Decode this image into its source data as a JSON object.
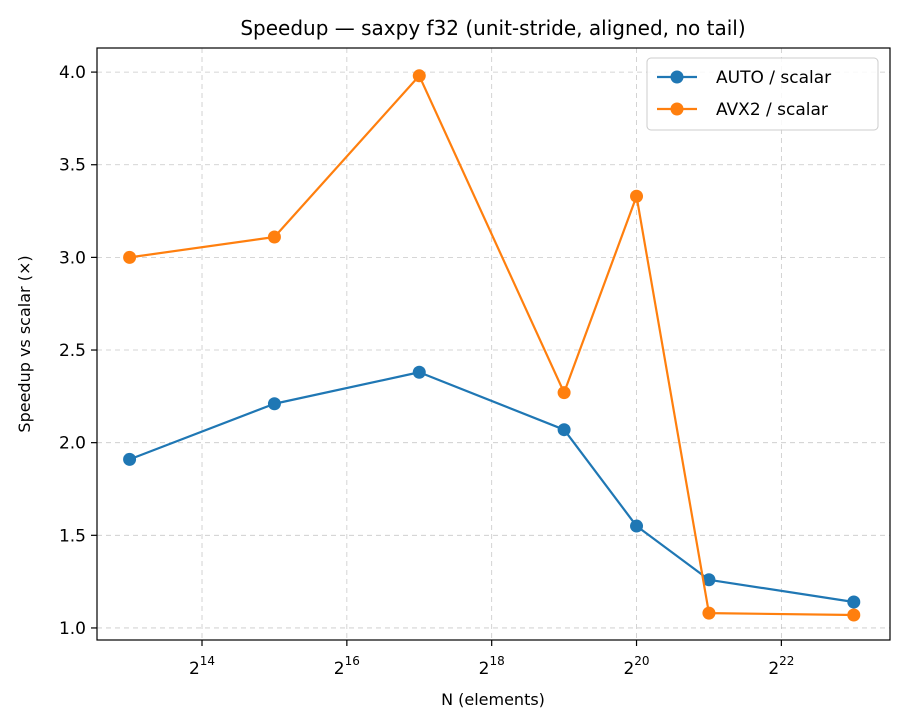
{
  "chart_data": {
    "type": "line",
    "title": "Speedup — saxpy f32 (unit-stride, aligned, no tail)",
    "xlabel": "N (elements)",
    "ylabel": "Speedup vs scalar (×)",
    "x_scale": "log2",
    "x": [
      8192,
      32768,
      131072,
      524288,
      1048576,
      2097152,
      8388608
    ],
    "xlim_exponent": [
      12.55,
      23.5
    ],
    "ylim": [
      0.935,
      4.13
    ],
    "x_ticks": [
      {
        "base": "2",
        "exp": "14",
        "value": 16384
      },
      {
        "base": "2",
        "exp": "16",
        "value": 65536
      },
      {
        "base": "2",
        "exp": "18",
        "value": 262144
      },
      {
        "base": "2",
        "exp": "20",
        "value": 1048576
      },
      {
        "base": "2",
        "exp": "22",
        "value": 4194304
      }
    ],
    "y_ticks": [
      "1.0",
      "1.5",
      "2.0",
      "2.5",
      "3.0",
      "3.5",
      "4.0"
    ],
    "grid": true,
    "legend_position": "top-right",
    "series": [
      {
        "name": "AUTO / scalar",
        "color": "#1f77b4",
        "values": [
          1.91,
          2.21,
          2.38,
          2.07,
          1.55,
          1.26,
          1.14
        ]
      },
      {
        "name": "AVX2 / scalar",
        "color": "#ff7f0e",
        "values": [
          3.0,
          3.11,
          3.98,
          2.27,
          3.33,
          1.08,
          1.07
        ]
      }
    ]
  }
}
